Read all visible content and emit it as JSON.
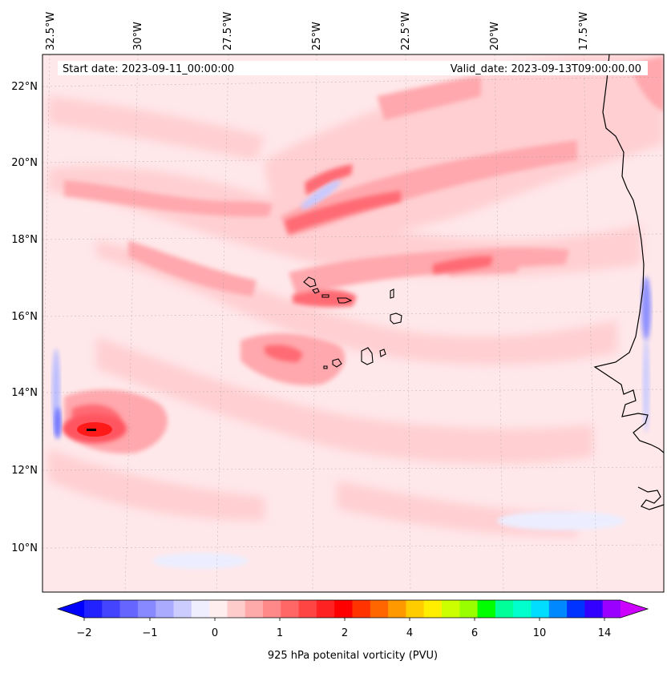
{
  "header": {
    "start_date": "Start date: 2023-09-11_00:00:00",
    "valid_date": "Valid_date: 2023-09-13T09:00:00.00"
  },
  "map": {
    "lon_labels": [
      "32.5°W",
      "30°W",
      "27.5°W",
      "25°W",
      "22.5°W",
      "20°W",
      "17.5°W"
    ],
    "lat_labels": [
      "22°N",
      "20°N",
      "18°N",
      "16°N",
      "14°N",
      "12°N",
      "10°N"
    ],
    "variable": "925 hPa potential vorticity",
    "features": {
      "cyclone_pv_max_lat": 13.1,
      "cyclone_pv_max_lon": -31.0,
      "islands": "Cabo Verde",
      "coast": "West Africa"
    }
  },
  "colorbar": {
    "label": "925 hPa potenital vorticity (PVU)",
    "tick_labels": [
      "−2",
      "−1",
      "0",
      "1",
      "2",
      "4",
      "6",
      "10",
      "14"
    ],
    "levels_colors": [
      "#0000ff",
      "#2222ff",
      "#4444ff",
      "#6666ff",
      "#8888ff",
      "#aaaaff",
      "#ccccff",
      "#eeeeff",
      "#ffeeee",
      "#ffcccc",
      "#ffaaaa",
      "#ff8888",
      "#ff6666",
      "#ff4444",
      "#ff2222",
      "#ff0000",
      "#ff3300",
      "#ff6600",
      "#ff9900",
      "#ffcc00",
      "#ffee00",
      "#ccff00",
      "#99ff00",
      "#00ff00",
      "#00ff99",
      "#00ffcc",
      "#00ddff",
      "#0088ff",
      "#0033ff",
      "#3300ff",
      "#9900ff",
      "#cc00ff"
    ],
    "extend": "both"
  }
}
